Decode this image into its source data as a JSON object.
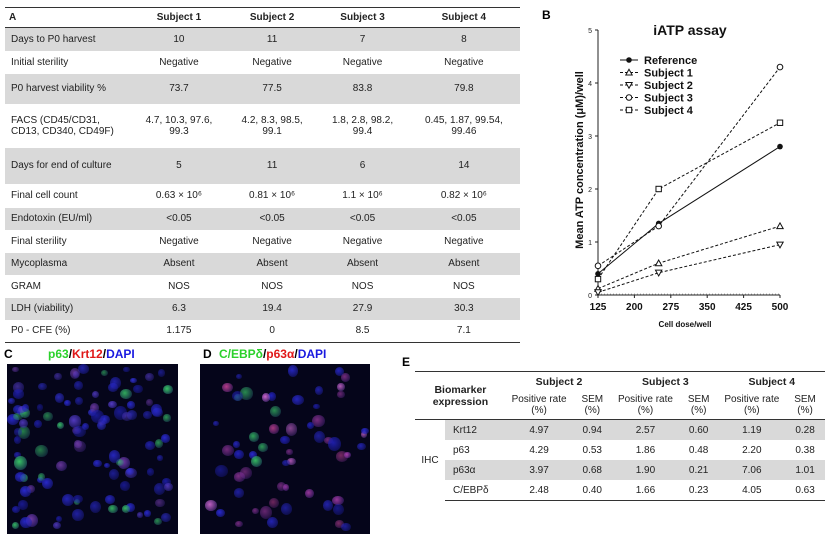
{
  "panels": {
    "a": "A",
    "b": "B",
    "c": "C",
    "d": "D",
    "e": "E"
  },
  "table_a": {
    "headers": [
      "A",
      "Subject 1",
      "Subject 2",
      "Subject 3",
      "Subject 4"
    ],
    "rows": [
      {
        "label": "Days to P0 harvest",
        "values": [
          "10",
          "11",
          "7",
          "8"
        ]
      },
      {
        "label": "Initial sterility",
        "values": [
          "Negative",
          "Negative",
          "Negative",
          "Negative"
        ]
      },
      {
        "label": "P0 harvest viability %",
        "values": [
          "73.7",
          "77.5",
          "83.8",
          "79.8"
        ]
      },
      {
        "label": "FACS (CD45/CD31, CD13, CD340, CD49F)",
        "values": [
          "4.7, 10.3, 97.6, 99.3",
          "4.2, 8.3, 98.5, 99.1",
          "1.8, 2.8, 98.2, 99.4",
          "0.45, 1.87, 99.54, 99.46"
        ]
      },
      {
        "label": "Days for end of culture",
        "values": [
          "5",
          "11",
          "6",
          "14"
        ]
      },
      {
        "label": "Final cell count",
        "values": [
          "0.63 × 10⁶",
          "0.81 × 10⁶",
          "1.1 × 10⁶",
          "0.82 × 10⁶"
        ]
      },
      {
        "label": "Endotoxin (EU/ml)",
        "values": [
          "<0.05",
          "<0.05",
          "<0.05",
          "<0.05"
        ]
      },
      {
        "label": "Final sterility",
        "values": [
          "Negative",
          "Negative",
          "Negative",
          "Negative"
        ]
      },
      {
        "label": "Mycoplasma",
        "values": [
          "Absent",
          "Absent",
          "Absent",
          "Absent"
        ]
      },
      {
        "label": "GRAM",
        "values": [
          "NOS",
          "NOS",
          "NOS",
          "NOS"
        ]
      },
      {
        "label": "LDH (viability)",
        "values": [
          "6.3",
          "19.4",
          "27.9",
          "30.3"
        ]
      },
      {
        "label": "P0 - CFE (%)",
        "values": [
          "1.175",
          "0",
          "8.5",
          "7.1"
        ]
      }
    ]
  },
  "chart_data": {
    "type": "line",
    "title": "iATP assay",
    "xlabel": "Cell dose/well",
    "ylabel": "Mean ATP concentration (μM)/well",
    "xlim": [
      125,
      500
    ],
    "ylim": [
      0,
      5
    ],
    "xticks": [
      "125",
      "200",
      "275",
      "350",
      "425",
      "500"
    ],
    "yticks": [
      "0",
      "1",
      "2",
      "3",
      "4",
      "5"
    ],
    "legend_position": "top-left",
    "x": [
      125,
      250,
      500
    ],
    "series": [
      {
        "name": "Reference",
        "marker": "filled-circle",
        "line": "solid",
        "values": [
          0.4,
          1.35,
          2.8
        ]
      },
      {
        "name": "Subject 1",
        "marker": "triangle-up",
        "line": "dashed",
        "values": [
          0.12,
          0.6,
          1.3
        ]
      },
      {
        "name": "Subject 2",
        "marker": "triangle-down",
        "line": "dashed",
        "values": [
          0.05,
          0.42,
          0.95
        ]
      },
      {
        "name": "Subject 3",
        "marker": "open-circle",
        "line": "dashed",
        "values": [
          0.55,
          1.3,
          4.3
        ]
      },
      {
        "name": "Subject 4",
        "marker": "open-square",
        "line": "dashed",
        "values": [
          0.3,
          2.0,
          3.25
        ]
      }
    ]
  },
  "micrograph_c": {
    "caption": {
      "p1": "p63",
      "sep1": "/",
      "p2": "Krt12",
      "sep2": "/",
      "p3": "DAPI"
    }
  },
  "micrograph_d": {
    "caption": {
      "p1": "C/EBPδ",
      "sep1": "/",
      "p2": "p63α",
      "sep2": "/",
      "p3": "DAPI"
    }
  },
  "table_e": {
    "header_label": "Biomarker expression",
    "subjects": [
      "Subject 2",
      "Subject 3",
      "Subject 4"
    ],
    "sub_headers": [
      "Positive rate (%)",
      "SEM (%)"
    ],
    "method": "IHC",
    "rows": [
      {
        "marker": "Krt12",
        "values": [
          "4.97",
          "0.94",
          "2.57",
          "0.60",
          "1.19",
          "0.28"
        ]
      },
      {
        "marker": "p63",
        "values": [
          "4.29",
          "0.53",
          "1.86",
          "0.48",
          "2.20",
          "0.38"
        ]
      },
      {
        "marker": "p63α",
        "values": [
          "3.97",
          "0.68",
          "1.90",
          "0.21",
          "7.06",
          "1.01"
        ]
      },
      {
        "marker": "C/EBPδ",
        "values": [
          "2.48",
          "0.40",
          "1.66",
          "0.23",
          "4.05",
          "0.63"
        ]
      }
    ]
  }
}
